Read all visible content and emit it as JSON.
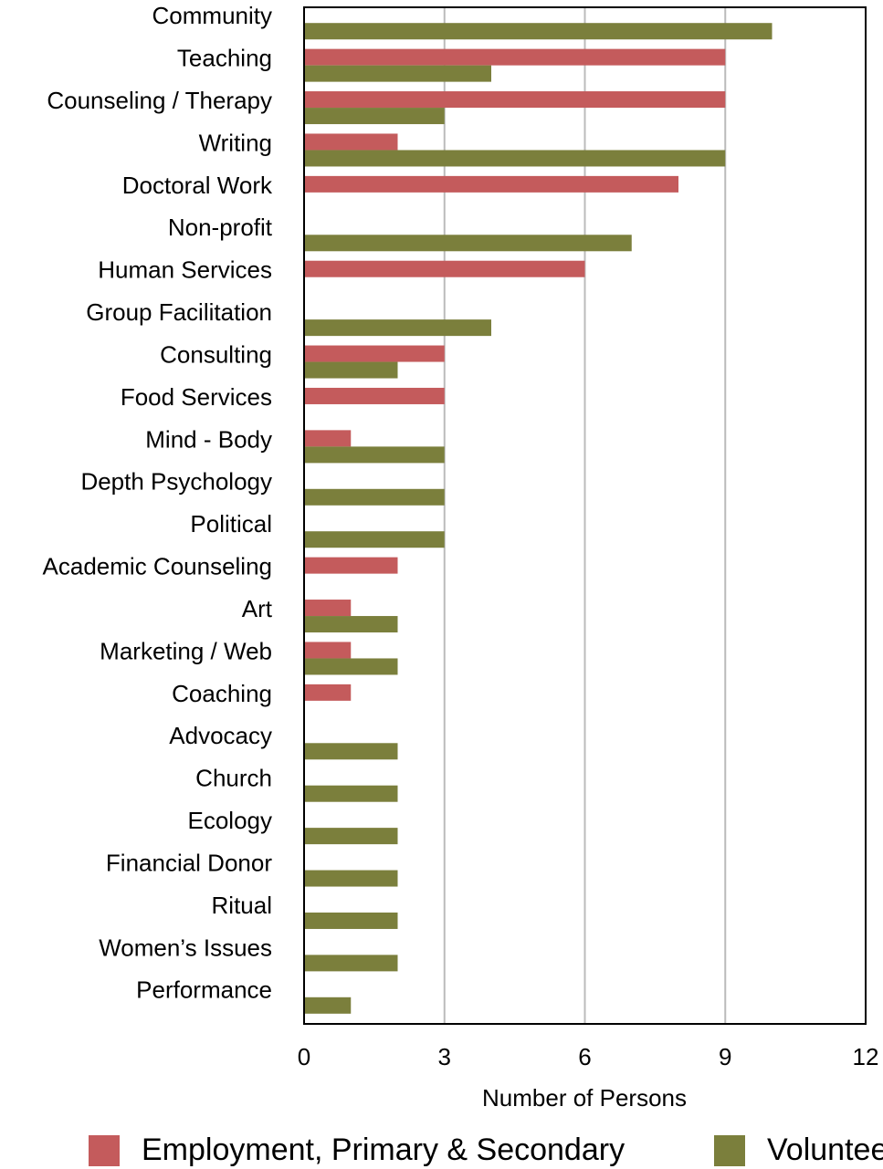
{
  "chart_data": {
    "type": "barh",
    "xlabel": "Number of Persons",
    "categories": [
      "Community",
      "Teaching",
      "Counseling / Therapy",
      "Writing",
      "Doctoral Work",
      "Non-profit",
      "Human Services",
      "Group Facilitation",
      "Consulting",
      "Food Services",
      "Mind - Body",
      "Depth Psychology",
      "Political",
      "Academic Counseling",
      "Art",
      "Marketing / Web",
      "Coaching",
      "Advocacy",
      "Church",
      "Ecology",
      "Financial Donor",
      "Ritual",
      "Women’s Issues",
      "Performance"
    ],
    "series": [
      {
        "name": "Employment, Primary & Secondary",
        "color": "#c45b5c",
        "values": [
          0,
          9,
          9,
          2,
          8,
          0,
          6,
          0,
          3,
          3,
          1,
          0,
          0,
          2,
          1,
          1,
          1,
          0,
          0,
          0,
          0,
          0,
          0,
          0
        ]
      },
      {
        "name": "Volunteer",
        "color": "#7b7f3c",
        "values": [
          10,
          4,
          3,
          9,
          0,
          7,
          0,
          4,
          2,
          0,
          3,
          3,
          3,
          0,
          2,
          2,
          0,
          2,
          2,
          2,
          2,
          2,
          2,
          1
        ]
      }
    ],
    "xlim": [
      0,
      12
    ],
    "xticks": [
      0,
      3,
      6,
      9,
      12
    ],
    "grid": true,
    "legend": "bottom"
  }
}
